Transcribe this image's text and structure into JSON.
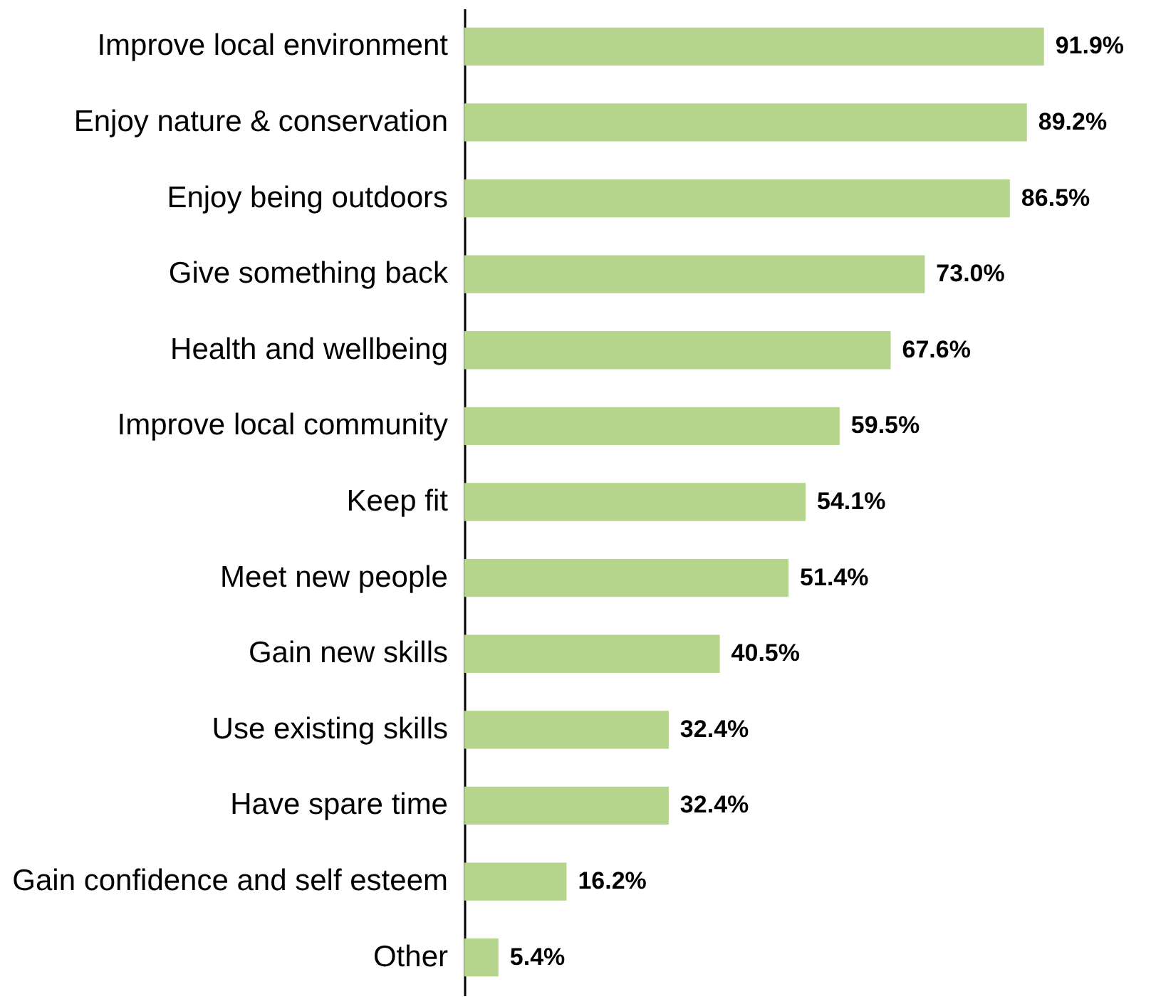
{
  "chart_data": {
    "type": "bar",
    "orientation": "horizontal",
    "categories": [
      "Improve local environment",
      "Enjoy nature & conservation",
      "Enjoy being outdoors",
      "Give something back",
      "Health and wellbeing",
      "Improve local community",
      "Keep fit",
      "Meet new people",
      "Gain new skills",
      "Use existing skills",
      "Have spare time",
      "Gain confidence and self esteem",
      "Other"
    ],
    "values": [
      91.9,
      89.2,
      86.5,
      73.0,
      67.6,
      59.5,
      54.1,
      51.4,
      40.5,
      32.4,
      32.4,
      16.2,
      5.4
    ],
    "value_labels": [
      "91.9%",
      "89.2%",
      "86.5%",
      "73.0%",
      "67.6%",
      "59.5%",
      "54.1%",
      "51.4%",
      "40.5%",
      "32.4%",
      "32.4%",
      "16.2%",
      "5.4%"
    ],
    "color": "#b5d48c",
    "grid": false,
    "tick_labels": "y"
  }
}
